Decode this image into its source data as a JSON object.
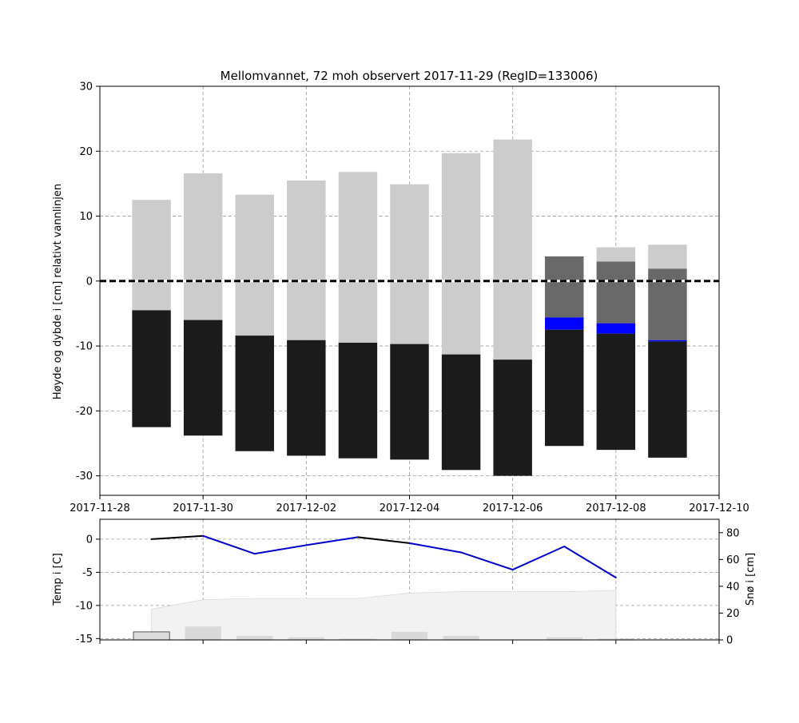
{
  "chart_data": [
    {
      "type": "bar",
      "title": "Mellomvannet, 72 moh observert 2017-11-29 (RegID=133006)",
      "xlabel": "",
      "ylabel": "Høyde og dybde i [cm] relativt vannlinjen",
      "ylim": [
        -33,
        30
      ],
      "xlim": [
        "2017-11-28",
        "2017-12-10"
      ],
      "x_ticks": [
        "2017-11-28",
        "2017-11-30",
        "2017-12-02",
        "2017-12-04",
        "2017-12-06",
        "2017-12-08",
        "2017-12-10"
      ],
      "y_ticks": [
        -30,
        -20,
        -10,
        0,
        10,
        20,
        30
      ],
      "grid": true,
      "waterline": 0,
      "colors": {
        "snow": "#cccccc",
        "slush": "#696969",
        "water": "#0000ff",
        "black_ice": "#1b1b1b",
        "waterline": "#000000"
      },
      "layer_names": [
        "snow",
        "slush",
        "water",
        "black_ice"
      ],
      "series": [
        {
          "date": "2017-11-29",
          "snow_top": 12.5,
          "slush_top": null,
          "slush_bottom": null,
          "water_bottom": null,
          "ice_top": -4.5,
          "ice_bottom": -22.5
        },
        {
          "date": "2017-11-30",
          "snow_top": 16.6,
          "slush_top": null,
          "slush_bottom": null,
          "water_bottom": null,
          "ice_top": -6.0,
          "ice_bottom": -23.8
        },
        {
          "date": "2017-12-01",
          "snow_top": 13.3,
          "slush_top": null,
          "slush_bottom": null,
          "water_bottom": null,
          "ice_top": -8.4,
          "ice_bottom": -26.2
        },
        {
          "date": "2017-12-02",
          "snow_top": 15.5,
          "slush_top": null,
          "slush_bottom": null,
          "water_bottom": null,
          "ice_top": -9.1,
          "ice_bottom": -26.9
        },
        {
          "date": "2017-12-03",
          "snow_top": 16.8,
          "slush_top": null,
          "slush_bottom": null,
          "water_bottom": null,
          "ice_top": -9.5,
          "ice_bottom": -27.3
        },
        {
          "date": "2017-12-04",
          "snow_top": 14.9,
          "slush_top": null,
          "slush_bottom": null,
          "water_bottom": null,
          "ice_top": -9.7,
          "ice_bottom": -27.5
        },
        {
          "date": "2017-12-05",
          "snow_top": 19.7,
          "slush_top": null,
          "slush_bottom": null,
          "water_bottom": null,
          "ice_top": -11.3,
          "ice_bottom": -29.1
        },
        {
          "date": "2017-12-06",
          "snow_top": 21.8,
          "slush_top": null,
          "slush_bottom": null,
          "water_bottom": null,
          "ice_top": -12.1,
          "ice_bottom": -30.0
        },
        {
          "date": "2017-12-07",
          "snow_top": 3.8,
          "slush_top": 3.8,
          "slush_bottom": -5.6,
          "water_bottom": -7.5,
          "ice_top": -7.5,
          "ice_bottom": -25.4
        },
        {
          "date": "2017-12-08",
          "snow_top": 5.2,
          "slush_top": 3.0,
          "slush_bottom": -6.5,
          "water_bottom": -8.1,
          "ice_top": -8.1,
          "ice_bottom": -26.0
        },
        {
          "date": "2017-12-09",
          "snow_top": 5.6,
          "slush_top": 1.9,
          "slush_bottom": -9.1,
          "water_bottom": -9.3,
          "ice_top": -9.3,
          "ice_bottom": -27.2
        }
      ]
    },
    {
      "type": "line",
      "title": "",
      "xlabel": "",
      "ylabel": "Temp i [C]",
      "ylabel_right": "Snø i [cm]",
      "ylim": [
        -15.2,
        3
      ],
      "ylim_right": [
        0,
        90
      ],
      "y_ticks": [
        -15,
        -10,
        -5,
        0
      ],
      "y_ticks_right": [
        0,
        20,
        40,
        60,
        80
      ],
      "grid": true,
      "colors": {
        "temp_above_zero": "#000000",
        "temp_below_zero": "#0000cc",
        "snow_depth": "#f2f2f2",
        "new_snow_bar": "#d9d9d9"
      },
      "temperature": {
        "x": [
          "2017-11-29",
          "2017-11-30",
          "2017-12-01",
          "2017-12-02",
          "2017-12-03",
          "2017-12-04",
          "2017-12-05",
          "2017-12-06",
          "2017-12-07",
          "2017-12-08"
        ],
        "values": [
          0.0,
          0.5,
          -2.2,
          -0.9,
          0.3,
          -0.6,
          -2.0,
          -4.6,
          -1.1,
          -5.8
        ]
      },
      "snow_depth": {
        "x": [
          "2017-11-29",
          "2017-11-30",
          "2017-12-01",
          "2017-12-02",
          "2017-12-03",
          "2017-12-04",
          "2017-12-05",
          "2017-12-06",
          "2017-12-07",
          "2017-12-08"
        ],
        "values": [
          23,
          30,
          31,
          31,
          31,
          35,
          36,
          36,
          36,
          37
        ]
      },
      "new_snow": {
        "x": [
          "2017-11-29",
          "2017-11-30",
          "2017-12-01",
          "2017-12-02",
          "2017-12-03",
          "2017-12-04",
          "2017-12-05",
          "2017-12-06",
          "2017-12-07",
          "2017-12-08",
          "2017-12-09"
        ],
        "values": [
          6,
          10,
          3,
          2,
          1,
          6,
          3,
          0,
          2,
          1,
          0
        ]
      }
    }
  ]
}
